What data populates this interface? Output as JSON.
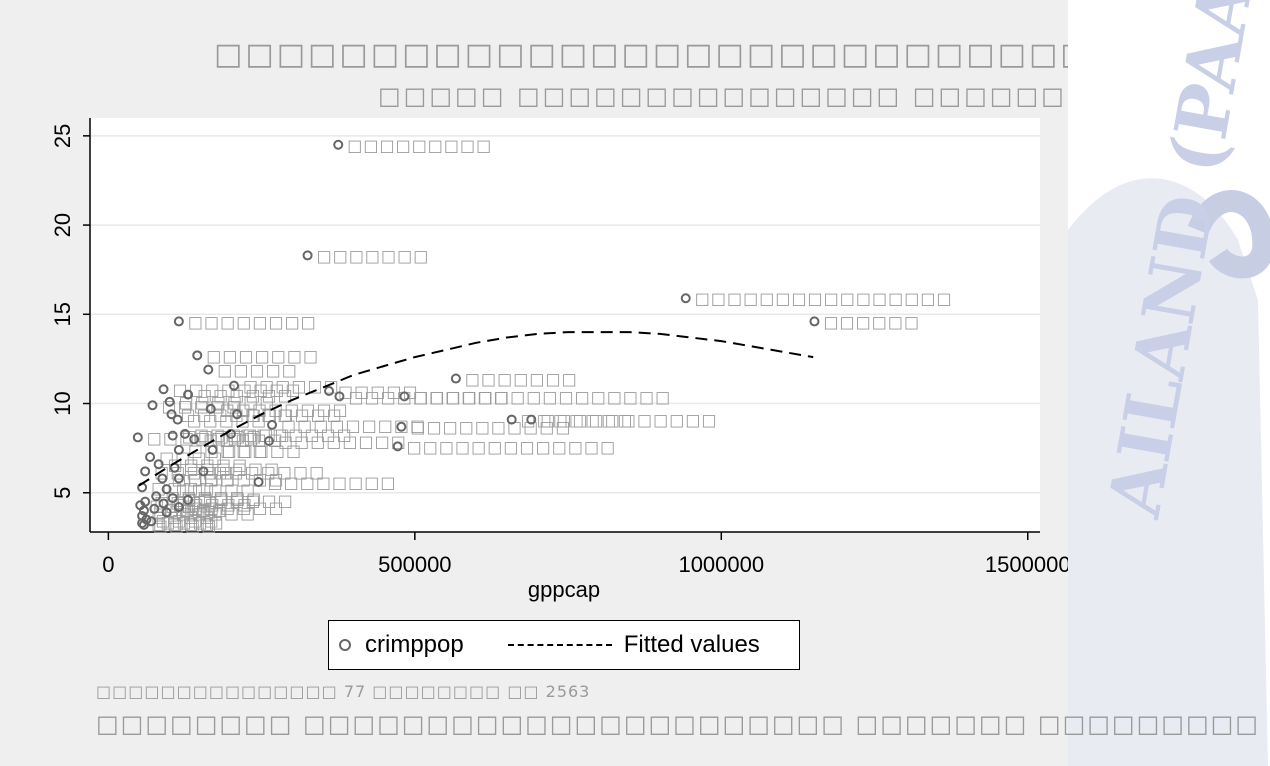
{
  "title": "□□□□□□□□□□□□□□□□□□□□□□□□□□□□□□□□□ □□□",
  "subtitle": "□□□□□ □□□□□□□□□□□□□□□ □□□□□□□□",
  "note_line1": "□□□□□□□□□□□□□□□ 77 □□□□□□□□ □□ 2563",
  "note_line2": "□□□□□□□□ □□□□□□□□□□□□□□□□□□□□□□ □□□□□□□ □□□□□□□□□",
  "colors": {
    "background": "#efefef",
    "plot_area": "#ffffff",
    "marker": "#666666",
    "fit_line": "#000000",
    "box_text": "#9a9a9a",
    "watermark": "#3a4fa8"
  },
  "watermark_text": "AILAND (PAAT)",
  "chart_data": {
    "type": "scatter",
    "xlabel": "gppcap",
    "ylabel": "",
    "xlim": [
      -30000,
      1520000
    ],
    "ylim": [
      2.8,
      26
    ],
    "xticks": [
      0,
      500000,
      1000000,
      1500000
    ],
    "xtick_labels": [
      "0",
      "500000",
      "1000000",
      "1500000"
    ],
    "yticks": [
      5,
      10,
      15,
      20,
      25
    ],
    "ytick_labels": [
      "5",
      "10",
      "15",
      "20",
      "25"
    ],
    "grid": true,
    "legend_position": "bottom",
    "series": [
      {
        "name": "crimppop",
        "type": "scatter",
        "points": [
          {
            "x": 375000,
            "y": 24.5,
            "label": "□□□□□□□□□"
          },
          {
            "x": 325000,
            "y": 18.3,
            "label": "□□□□□□□"
          },
          {
            "x": 942000,
            "y": 15.9,
            "label": "□□□□□□□□□□□□□□□□"
          },
          {
            "x": 1152000,
            "y": 14.6,
            "label": "□□□□□□"
          },
          {
            "x": 115000,
            "y": 14.6,
            "label": "□□□□□□□□"
          },
          {
            "x": 145000,
            "y": 12.7,
            "label": "□□□□□□□"
          },
          {
            "x": 163000,
            "y": 11.9,
            "label": "□□□□□"
          },
          {
            "x": 567000,
            "y": 11.4,
            "label": "□□□□□□□"
          },
          {
            "x": 205000,
            "y": 11.0,
            "label": "□□□□□□"
          },
          {
            "x": 90000,
            "y": 10.8,
            "label": "□□□□□□□□"
          },
          {
            "x": 130000,
            "y": 10.5,
            "label": "□□□□□□"
          },
          {
            "x": 360000,
            "y": 10.7,
            "label": "□□□□□"
          },
          {
            "x": 377000,
            "y": 10.4,
            "label": "□□□□□□□□□□"
          },
          {
            "x": 483000,
            "y": 10.4,
            "label": "□□□□□□□□□□□□□□□□"
          },
          {
            "x": 100000,
            "y": 10.1,
            "label": "□□□□□□"
          },
          {
            "x": 72000,
            "y": 9.9,
            "label": "□□□□□"
          },
          {
            "x": 167000,
            "y": 9.7,
            "label": "□□□□□□□□"
          },
          {
            "x": 210000,
            "y": 9.4,
            "label": "□□□□□□"
          },
          {
            "x": 103000,
            "y": 9.4,
            "label": "□□□□□□□"
          },
          {
            "x": 113000,
            "y": 9.1,
            "label": "□□□□□"
          },
          {
            "x": 658000,
            "y": 9.1,
            "label": "□□□□□□□"
          },
          {
            "x": 690000,
            "y": 9.1,
            "label": "□□□□□□□□□□□"
          },
          {
            "x": 267000,
            "y": 8.8,
            "label": "□□□□□□□□□"
          },
          {
            "x": 478000,
            "y": 8.7,
            "label": "□□□□□□□□□□"
          },
          {
            "x": 48000,
            "y": 8.1,
            "label": "□□□□□□□"
          },
          {
            "x": 105000,
            "y": 8.2,
            "label": "□□□□□"
          },
          {
            "x": 125000,
            "y": 8.3,
            "label": "□□□□□□"
          },
          {
            "x": 140000,
            "y": 8.0,
            "label": "□□□□□"
          },
          {
            "x": 200000,
            "y": 8.3,
            "label": "□□□□□□□"
          },
          {
            "x": 262000,
            "y": 7.9,
            "label": "□□□□□□□□"
          },
          {
            "x": 115000,
            "y": 7.4,
            "label": "□□□□□"
          },
          {
            "x": 170000,
            "y": 7.4,
            "label": "□□□□□"
          },
          {
            "x": 68000,
            "y": 7.0,
            "label": "□□□□"
          },
          {
            "x": 472000,
            "y": 7.6,
            "label": "□□□□□□□□□□□□□"
          },
          {
            "x": 82000,
            "y": 6.6,
            "label": "□□□□□"
          },
          {
            "x": 60000,
            "y": 6.2,
            "label": "□□□□□"
          },
          {
            "x": 108000,
            "y": 6.4,
            "label": "□□□□□□"
          },
          {
            "x": 155000,
            "y": 6.2,
            "label": "□□□□□□□"
          },
          {
            "x": 88000,
            "y": 5.8,
            "label": "□□□□"
          },
          {
            "x": 115000,
            "y": 5.8,
            "label": "□□□□□□"
          },
          {
            "x": 245000,
            "y": 5.6,
            "label": "□□□□□□□□"
          },
          {
            "x": 55000,
            "y": 5.3,
            "label": "□□□□"
          },
          {
            "x": 95000,
            "y": 5.2,
            "label": "□□□□□"
          },
          {
            "x": 78000,
            "y": 4.8,
            "label": "□□□□□"
          },
          {
            "x": 105000,
            "y": 4.7,
            "label": "□□□□□"
          },
          {
            "x": 130000,
            "y": 4.6,
            "label": "□□□□□□"
          },
          {
            "x": 60000,
            "y": 4.5,
            "label": "□□□□"
          },
          {
            "x": 90000,
            "y": 4.4,
            "label": "□□□□□"
          },
          {
            "x": 115000,
            "y": 4.2,
            "label": "□□□□□□"
          },
          {
            "x": 52000,
            "y": 4.3,
            "label": "□□□"
          },
          {
            "x": 58000,
            "y": 4.0,
            "label": "□□□□"
          },
          {
            "x": 75000,
            "y": 4.1,
            "label": "□□□□"
          },
          {
            "x": 95000,
            "y": 3.9,
            "label": "□□□□□"
          },
          {
            "x": 55000,
            "y": 3.7,
            "label": "□□□□"
          },
          {
            "x": 62000,
            "y": 3.5,
            "label": "□□□□"
          },
          {
            "x": 70000,
            "y": 3.4,
            "label": "□□□□"
          },
          {
            "x": 55000,
            "y": 3.3,
            "label": "□□□□"
          },
          {
            "x": 58000,
            "y": 3.2,
            "label": "□□□□"
          }
        ]
      },
      {
        "name": "Fitted values",
        "type": "line",
        "style": "dashed",
        "points": [
          {
            "x": 50000,
            "y": 5.4
          },
          {
            "x": 100000,
            "y": 6.5
          },
          {
            "x": 150000,
            "y": 7.5
          },
          {
            "x": 200000,
            "y": 8.5
          },
          {
            "x": 250000,
            "y": 9.4
          },
          {
            "x": 300000,
            "y": 10.2
          },
          {
            "x": 350000,
            "y": 10.9
          },
          {
            "x": 400000,
            "y": 11.6
          },
          {
            "x": 450000,
            "y": 12.1
          },
          {
            "x": 500000,
            "y": 12.6
          },
          {
            "x": 550000,
            "y": 13.0
          },
          {
            "x": 600000,
            "y": 13.4
          },
          {
            "x": 650000,
            "y": 13.7
          },
          {
            "x": 700000,
            "y": 13.9
          },
          {
            "x": 750000,
            "y": 14.0
          },
          {
            "x": 800000,
            "y": 14.0
          },
          {
            "x": 850000,
            "y": 14.0
          },
          {
            "x": 900000,
            "y": 13.9
          },
          {
            "x": 950000,
            "y": 13.7
          },
          {
            "x": 1000000,
            "y": 13.5
          },
          {
            "x": 1050000,
            "y": 13.2
          },
          {
            "x": 1100000,
            "y": 12.9
          },
          {
            "x": 1150000,
            "y": 12.6
          }
        ]
      }
    ]
  }
}
